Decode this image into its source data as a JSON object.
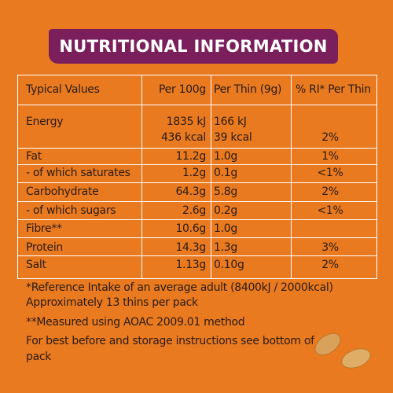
{
  "header": {
    "title": "NUTRITIONAL INFORMATION"
  },
  "table": {
    "columns": [
      "Typical Values",
      "Per 100g",
      "Per Thin (9g)",
      "% RI* Per Thin"
    ],
    "rows": [
      {
        "label": "Energy",
        "per_100g": "1835 kJ",
        "per_thin": "166 kJ"
      },
      {
        "per_100g": "436 kcal",
        "per_thin": "39 kcal",
        "ri": "2%"
      },
      {
        "label": "Fat",
        "per_100g": "11.2g",
        "per_thin": "1.0g",
        "ri": "1%"
      },
      {
        "label": "- of which saturates",
        "per_100g": "1.2g",
        "per_thin": "0.1g",
        "ri": "<1%"
      },
      {
        "label": "Carbohydrate",
        "per_100g": "64.3g",
        "per_thin": "5.8g",
        "ri": "2%"
      },
      {
        "label": "- of which sugars",
        "per_100g": "2.6g",
        "per_thin": "0.2g",
        "ri": "<1%"
      },
      {
        "label": "Fibre**",
        "per_100g": "10.6g",
        "per_thin": "1.0g"
      },
      {
        "label": "Protein",
        "per_100g": "14.3g",
        "per_thin": "1.3g",
        "ri": "3%"
      },
      {
        "label": "Salt",
        "per_100g": "1.13g",
        "per_thin": "0.10g",
        "ri": "2%"
      }
    ]
  },
  "footnotes": [
    "*Reference Intake of an average adult (8400kJ / 2000kcal)",
    "Approximately 13 thins per pack",
    "**Measured using AOAC 2009.01 method",
    "For best before and storage instructions see bottom of pack"
  ]
}
